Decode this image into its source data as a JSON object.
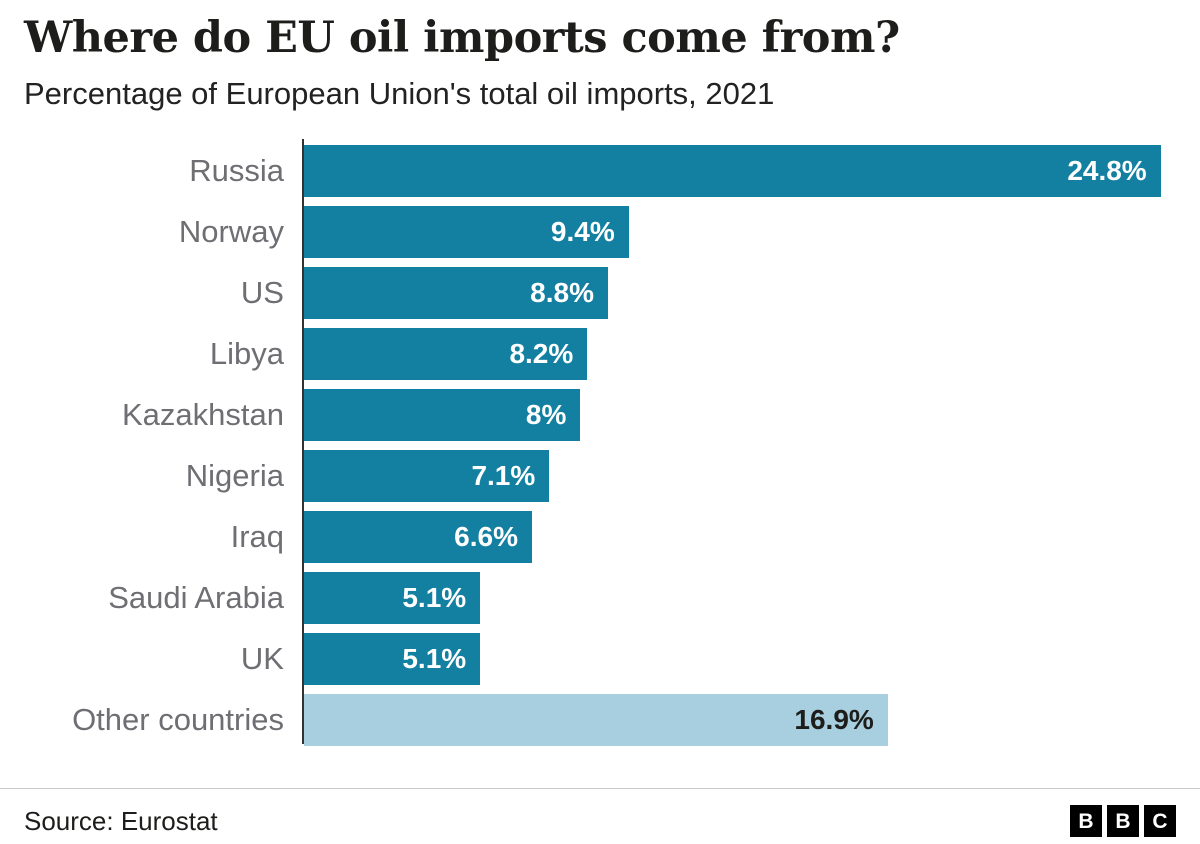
{
  "header": {
    "title": "Where do EU oil imports come from?",
    "subtitle": "Percentage of European Union's total oil imports, 2021"
  },
  "chart_data": {
    "type": "bar",
    "orientation": "horizontal",
    "title": "Where do EU oil imports come from?",
    "subtitle": "Percentage of European Union's total oil imports, 2021",
    "categories": [
      "Russia",
      "Norway",
      "US",
      "Libya",
      "Kazakhstan",
      "Nigeria",
      "Iraq",
      "Saudi Arabia",
      "UK",
      "Other countries"
    ],
    "values": [
      24.8,
      9.4,
      8.8,
      8.2,
      8,
      7.1,
      6.6,
      5.1,
      5.1,
      16.9
    ],
    "value_labels": [
      "24.8%",
      "9.4%",
      "8.8%",
      "8.2%",
      "8%",
      "7.1%",
      "6.6%",
      "5.1%",
      "5.1%",
      "16.9%"
    ],
    "xlabel": "",
    "ylabel": "",
    "xlim": [
      0,
      25.3
    ],
    "grid": false,
    "legend": false,
    "bar_color": "#1380a1",
    "highlight_index": 9,
    "highlight_color": "#a7cfe0",
    "value_label_color": "#ffffff",
    "highlight_value_label_color": "#1d1d1b",
    "category_label_color": "#6e6e73"
  },
  "footer": {
    "source": "Source: Eurostat",
    "logo_letters": [
      "B",
      "B",
      "C"
    ]
  }
}
